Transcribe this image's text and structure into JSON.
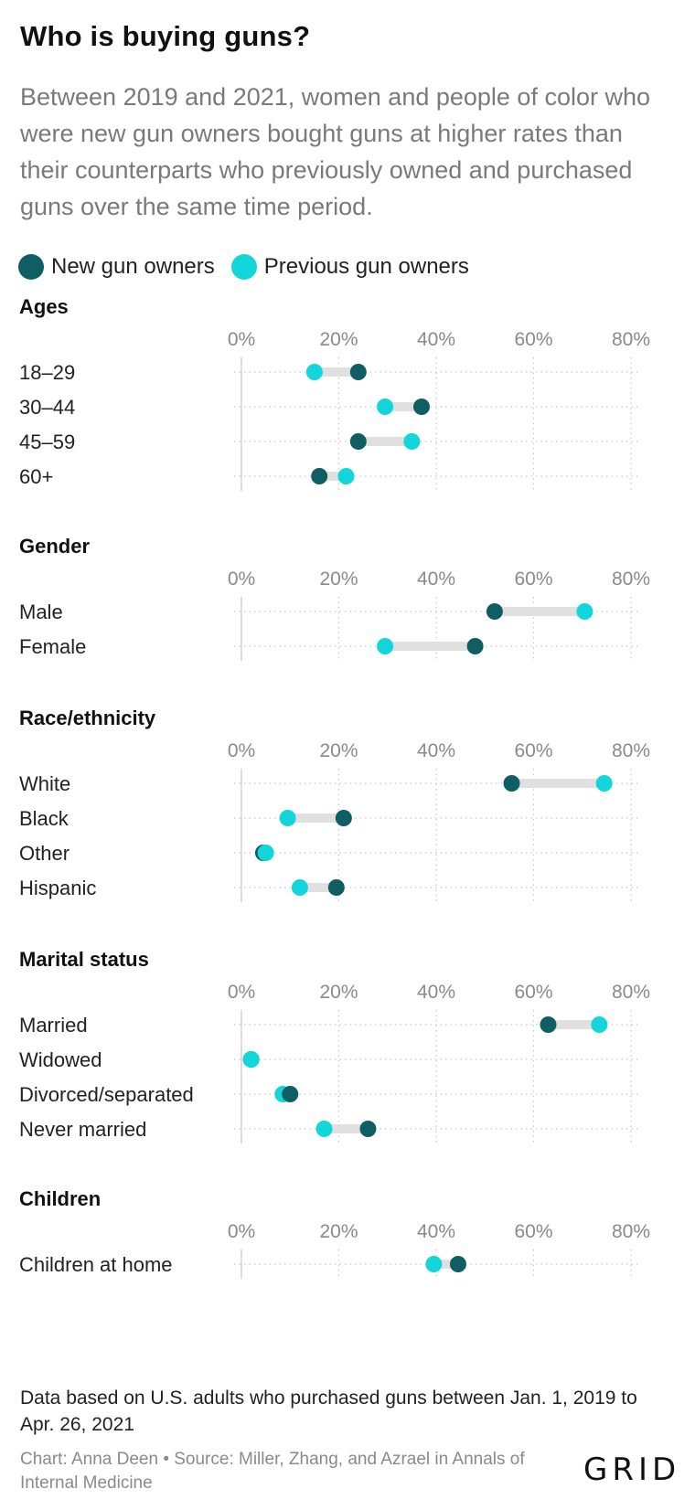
{
  "header": {
    "title": "Who is buying guns?",
    "subtitle": "Between 2019 and 2021, women and people of color who were new gun owners bought guns at higher rates than their counterparts who previously owned and purchased guns over the same time period."
  },
  "legend": {
    "new_label": "New gun owners",
    "previous_label": "Previous gun owners"
  },
  "colors": {
    "new": "#0e5e63",
    "previous": "#12d6d9",
    "connector": "#e0e0e0",
    "grid": "#c8c8c8",
    "axis_text": "#8a8a8a"
  },
  "chart_data": {
    "type": "dumbbell",
    "xlim": [
      0,
      80
    ],
    "tick_values": [
      0,
      20,
      40,
      60,
      80
    ],
    "tick_labels": [
      "0%",
      "20%",
      "40%",
      "60%",
      "80%"
    ],
    "series_names": [
      "New gun owners",
      "Previous gun owners"
    ],
    "panels": [
      {
        "title": "Ages",
        "rows": [
          {
            "label": "18–29",
            "new": 24,
            "previous": 15
          },
          {
            "label": "30–44",
            "new": 37,
            "previous": 29.5
          },
          {
            "label": "45–59",
            "new": 24,
            "previous": 35
          },
          {
            "label": "60+",
            "new": 16,
            "previous": 21.5
          }
        ]
      },
      {
        "title": "Gender",
        "rows": [
          {
            "label": "Male",
            "new": 52,
            "previous": 70.5
          },
          {
            "label": "Female",
            "new": 48,
            "previous": 29.5
          }
        ]
      },
      {
        "title": "Race/ethnicity",
        "rows": [
          {
            "label": "White",
            "new": 55.5,
            "previous": 74.5
          },
          {
            "label": "Black",
            "new": 21,
            "previous": 9.5
          },
          {
            "label": "Other",
            "new": 4.5,
            "previous": 5
          },
          {
            "label": "Hispanic",
            "new": 19.5,
            "previous": 12
          }
        ]
      },
      {
        "title": "Marital status",
        "rows": [
          {
            "label": "Married",
            "new": 63,
            "previous": 73.5
          },
          {
            "label": "Widowed",
            "new": 2,
            "previous": 2
          },
          {
            "label": "Divorced/separated",
            "new": 10,
            "previous": 8.5
          },
          {
            "label": "Never married",
            "new": 26,
            "previous": 17
          }
        ]
      },
      {
        "title": "Children",
        "rows": [
          {
            "label": "Children at home",
            "new": 44.5,
            "previous": 39.5
          }
        ]
      }
    ]
  },
  "footer": {
    "note": "Data based on U.S. adults who purchased guns between Jan. 1, 2019 to Apr. 26, 2021",
    "credit": "Chart: Anna Deen • Source: Miller, Zhang, and Azrael in Annals of Internal Medicine",
    "logo": "GRID"
  }
}
